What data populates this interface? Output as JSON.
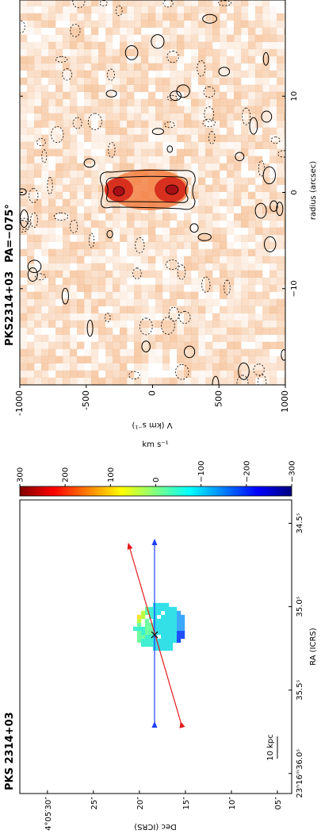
{
  "chart_data": [
    {
      "type": "image",
      "title": "PKS 2314+03",
      "xlabel": "RA (ICRS)",
      "ylabel": "Dec (ICRS)",
      "xlim": [
        36.12,
        34.36
      ],
      "ylim": [
        3.45,
        33.0
      ],
      "xticks": [
        {
          "value": 36.0,
          "label": "23ʰ16ᵐ36.0ˢ"
        },
        {
          "value": 35.5,
          "label": "35.5ˢ"
        },
        {
          "value": 35.0,
          "label": "35.0ˢ"
        },
        {
          "value": 34.5,
          "label": "34.5ˢ"
        }
      ],
      "yticks": [
        {
          "value": 30,
          "label": "4°05′30″"
        },
        {
          "value": 25,
          "label": "25″"
        },
        {
          "value": 20,
          "label": "20″"
        },
        {
          "value": 15,
          "label": "15″"
        },
        {
          "value": 10,
          "label": "10″"
        },
        {
          "value": 5,
          "label": "05″"
        }
      ],
      "scalebar": "10 kpc",
      "colorbar": {
        "label": "km s⁻¹",
        "lim": [
          -300,
          300
        ],
        "ticks": [
          300,
          200,
          100,
          0,
          {
            "value": -100,
            "label": "−100"
          },
          {
            "value": -200,
            "label": "−200"
          },
          {
            "value": -300,
            "label": "−300"
          }
        ]
      }
    },
    {
      "type": "pv",
      "title": "PKS2314+03",
      "subtitle": "PA=−075°",
      "xlabel": "radius (arcsec)",
      "ylabel": "V (km s⁻¹)",
      "xlim": [
        -20,
        20
      ],
      "ylim": [
        1000,
        -1000
      ],
      "xticks": [
        {
          "value": -10,
          "label": "−10"
        },
        0,
        10
      ],
      "yticks": [
        -1000,
        -500,
        0,
        500,
        1000
      ]
    }
  ]
}
